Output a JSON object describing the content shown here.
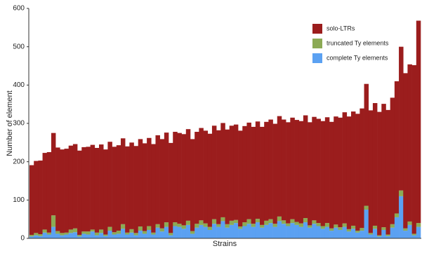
{
  "chart_data": {
    "type": "stacked_bar",
    "y_label": "Number of element",
    "x_label": "Strains",
    "ylim": [
      0,
      600
    ],
    "yticks": [
      0,
      100,
      200,
      300,
      400,
      500,
      600
    ],
    "legend": "top-right",
    "series": [
      {
        "name": "solo-LTRs",
        "color": "#9b1d1d",
        "values": [
          182,
          188,
          192,
          200,
          210,
          215,
          218,
          218,
          219,
          219,
          220,
          220,
          220,
          221,
          221,
          221,
          222,
          222,
          222,
          223,
          223,
          224,
          225,
          226,
          227,
          228,
          229,
          230,
          231,
          232,
          233,
          234,
          235,
          236,
          237,
          238,
          239,
          240,
          240,
          241,
          242,
          243,
          244,
          245,
          246,
          247,
          248,
          249,
          250,
          251,
          252,
          253,
          254,
          256,
          258,
          260,
          261,
          262,
          263,
          264,
          265,
          266,
          267,
          268,
          269,
          270,
          272,
          274,
          276,
          278,
          282,
          286,
          290,
          294,
          298,
          305,
          312,
          318,
          320,
          320,
          322,
          322,
          325,
          330,
          345,
          375,
          405,
          410,
          440,
          528
        ]
      },
      {
        "name": "truncated Ty elements",
        "color": "#8caa55",
        "values": [
          4,
          6,
          5,
          8,
          5,
          30,
          7,
          6,
          5,
          9,
          10,
          4,
          6,
          8,
          5,
          7,
          9,
          4,
          10,
          6,
          8,
          12,
          5,
          9,
          6,
          11,
          7,
          10,
          5,
          9,
          8,
          12,
          6,
          10,
          8,
          9,
          11,
          7,
          10,
          12,
          9,
          8,
          12,
          7,
          10,
          9,
          11,
          8,
          6,
          10,
          12,
          8,
          9,
          7,
          11,
          10,
          8,
          12,
          9,
          7,
          10,
          8,
          9,
          11,
          6,
          9,
          8,
          7,
          10,
          6,
          8,
          7,
          9,
          6,
          8,
          5,
          7,
          10,
          4,
          8,
          3,
          7,
          4,
          9,
          10,
          15,
          6,
          9,
          4,
          10
        ]
      },
      {
        "name": "complete Ty elements",
        "color": "#5ba1f2",
        "values": [
          5,
          8,
          6,
          15,
          10,
          30,
          12,
          8,
          10,
          14,
          16,
          5,
          12,
          10,
          18,
          8,
          14,
          6,
          20,
          10,
          12,
          25,
          10,
          15,
          8,
          20,
          12,
          22,
          10,
          28,
          18,
          30,
          8,
          32,
          30,
          25,
          35,
          12,
          28,
          35,
          30,
          22,
          38,
          30,
          45,
          28,
          35,
          40,
          25,
          32,
          38,
          30,
          42,
          28,
          35,
          40,
          30,
          45,
          38,
          32,
          40,
          35,
          30,
          42,
          28,
          38,
          32,
          25,
          30,
          20,
          28,
          22,
          30,
          18,
          25,
          15,
          20,
          75,
          10,
          25,
          5,
          22,
          6,
          28,
          55,
          110,
          20,
          35,
          8,
          30
        ]
      }
    ]
  }
}
